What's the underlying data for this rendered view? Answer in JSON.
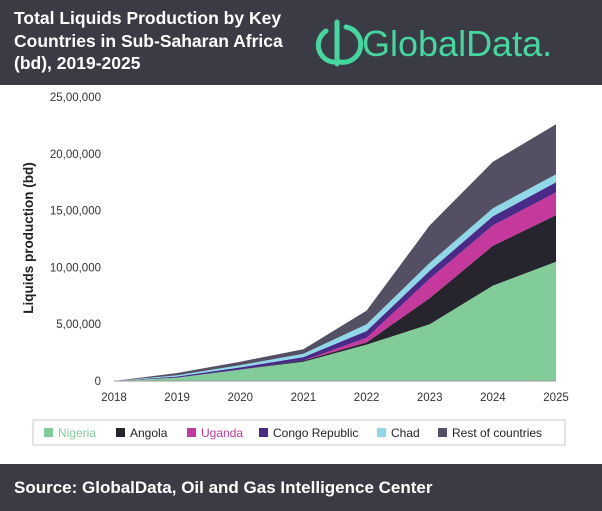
{
  "header": {
    "title": "Total Liquids Production by Key Countries in Sub-Saharan Africa (bd), 2019-2025",
    "logo_text": "GlobalData.",
    "background_color": "#3b3b45",
    "logo_color": "#44d7a0"
  },
  "footer": {
    "source": "Source: GlobalData, Oil and Gas Intelligence Center",
    "background_color": "#3b3b45"
  },
  "chart_data": {
    "type": "area",
    "stacked": true,
    "ylabel": "Liquids production (bd)",
    "xlabel": "",
    "x": [
      2018,
      2019,
      2020,
      2021,
      2022,
      2023,
      2024,
      2025
    ],
    "ylim": [
      0,
      2500000
    ],
    "yticks": [
      0,
      500000,
      1000000,
      1500000,
      2000000,
      2500000
    ],
    "ytick_labels": [
      "0",
      "5,00,000",
      "10,00,000",
      "15,00,000",
      "20,00,000",
      "25,00,000"
    ],
    "xtick_labels": [
      "2018",
      "2019",
      "2020",
      "2021",
      "2022",
      "2023",
      "2024",
      "2025"
    ],
    "legend_position": "bottom",
    "grid": false,
    "series": [
      {
        "name": "Nigeria",
        "color": "#82cc9a",
        "label_color": "#82cc9a",
        "values": [
          0,
          30000,
          100000,
          170000,
          320000,
          500000,
          840000,
          1050000
        ]
      },
      {
        "name": "Angola",
        "color": "#26242c",
        "label_color": "#222222",
        "values": [
          0,
          0,
          0,
          10000,
          20000,
          230000,
          350000,
          410000
        ]
      },
      {
        "name": "Uganda",
        "color": "#c4399b",
        "label_color": "#c4399b",
        "values": [
          0,
          0,
          0,
          0,
          40000,
          170000,
          180000,
          200000
        ]
      },
      {
        "name": "Congo Republic",
        "color": "#4a2a87",
        "label_color": "#222222",
        "values": [
          0,
          10000,
          20000,
          30000,
          60000,
          70000,
          80000,
          90000
        ]
      },
      {
        "name": "Chad",
        "color": "#8ed8e8",
        "label_color": "#222222",
        "values": [
          0,
          10000,
          20000,
          30000,
          60000,
          70000,
          70000,
          70000
        ]
      },
      {
        "name": "Rest of countries",
        "color": "#554f63",
        "label_color": "#222222",
        "values": [
          0,
          20000,
          30000,
          40000,
          120000,
          330000,
          410000,
          440000
        ]
      }
    ]
  }
}
